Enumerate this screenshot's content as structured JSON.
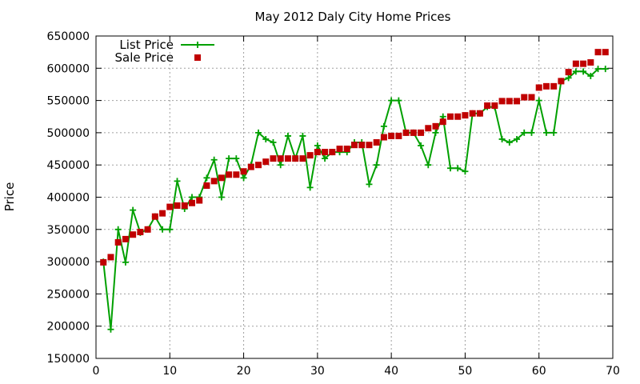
{
  "chart_data": {
    "type": "scatter",
    "title": "May 2012 Daly City Home Prices",
    "xlabel": "",
    "ylabel": "Price",
    "xlim": [
      0,
      70
    ],
    "ylim": [
      150000,
      650000
    ],
    "x_ticks": [
      0,
      10,
      20,
      30,
      40,
      50,
      60,
      70
    ],
    "y_ticks": [
      150000,
      200000,
      250000,
      300000,
      350000,
      400000,
      450000,
      500000,
      550000,
      600000,
      650000
    ],
    "grid": true,
    "legend_position": "top-left",
    "series": [
      {
        "name": "List Price",
        "style": "line-with-plus-markers",
        "color": "#00a000",
        "points": [
          [
            1,
            300000
          ],
          [
            2,
            195000
          ],
          [
            3,
            350000
          ],
          [
            4,
            299000
          ],
          [
            5,
            380000
          ],
          [
            6,
            345000
          ],
          [
            7,
            350000
          ],
          [
            8,
            370000
          ],
          [
            9,
            350000
          ],
          [
            10,
            350000
          ],
          [
            11,
            425000
          ],
          [
            12,
            382000
          ],
          [
            13,
            400000
          ],
          [
            14,
            400000
          ],
          [
            15,
            430000
          ],
          [
            16,
            458000
          ],
          [
            17,
            400000
          ],
          [
            18,
            460000
          ],
          [
            19,
            460000
          ],
          [
            20,
            430000
          ],
          [
            21,
            450000
          ],
          [
            22,
            500000
          ],
          [
            23,
            490000
          ],
          [
            24,
            485000
          ],
          [
            25,
            450000
          ],
          [
            26,
            495000
          ],
          [
            27,
            460000
          ],
          [
            28,
            495000
          ],
          [
            29,
            415000
          ],
          [
            30,
            480000
          ],
          [
            31,
            460000
          ],
          [
            32,
            470000
          ],
          [
            33,
            470000
          ],
          [
            34,
            470000
          ],
          [
            35,
            485000
          ],
          [
            36,
            485000
          ],
          [
            37,
            420000
          ],
          [
            38,
            450000
          ],
          [
            39,
            510000
          ],
          [
            40,
            550000
          ],
          [
            41,
            550000
          ],
          [
            42,
            500000
          ],
          [
            43,
            500000
          ],
          [
            44,
            480000
          ],
          [
            45,
            450000
          ],
          [
            46,
            500000
          ],
          [
            47,
            525000
          ],
          [
            48,
            445000
          ],
          [
            49,
            445000
          ],
          [
            50,
            440000
          ],
          [
            51,
            530000
          ],
          [
            52,
            530000
          ],
          [
            53,
            540000
          ],
          [
            54,
            540000
          ],
          [
            55,
            490000
          ],
          [
            56,
            485000
          ],
          [
            57,
            490000
          ],
          [
            58,
            500000
          ],
          [
            59,
            500000
          ],
          [
            60,
            550000
          ],
          [
            61,
            500000
          ],
          [
            62,
            500000
          ],
          [
            63,
            580000
          ],
          [
            64,
            585000
          ],
          [
            65,
            595000
          ],
          [
            66,
            595000
          ],
          [
            67,
            588000
          ],
          [
            68,
            599000
          ],
          [
            69,
            599000
          ]
        ]
      },
      {
        "name": "Sale Price",
        "style": "square-markers",
        "color": "#c00000",
        "points": [
          [
            1,
            299000
          ],
          [
            2,
            307000
          ],
          [
            3,
            330000
          ],
          [
            4,
            335000
          ],
          [
            5,
            342000
          ],
          [
            6,
            346000
          ],
          [
            7,
            350000
          ],
          [
            8,
            370000
          ],
          [
            9,
            375000
          ],
          [
            10,
            385000
          ],
          [
            11,
            387000
          ],
          [
            12,
            387000
          ],
          [
            13,
            391000
          ],
          [
            14,
            395000
          ],
          [
            15,
            418000
          ],
          [
            16,
            425000
          ],
          [
            17,
            430000
          ],
          [
            18,
            435000
          ],
          [
            19,
            435000
          ],
          [
            20,
            440000
          ],
          [
            21,
            447000
          ],
          [
            22,
            450000
          ],
          [
            23,
            455000
          ],
          [
            24,
            460000
          ],
          [
            25,
            460000
          ],
          [
            26,
            460000
          ],
          [
            27,
            460000
          ],
          [
            28,
            460000
          ],
          [
            29,
            465000
          ],
          [
            30,
            470000
          ],
          [
            31,
            470000
          ],
          [
            32,
            470000
          ],
          [
            33,
            475000
          ],
          [
            34,
            475000
          ],
          [
            35,
            481000
          ],
          [
            36,
            481000
          ],
          [
            37,
            481000
          ],
          [
            38,
            485000
          ],
          [
            39,
            493000
          ],
          [
            40,
            495000
          ],
          [
            41,
            495000
          ],
          [
            42,
            500000
          ],
          [
            43,
            500000
          ],
          [
            44,
            500000
          ],
          [
            45,
            507000
          ],
          [
            46,
            510000
          ],
          [
            47,
            517000
          ],
          [
            48,
            525000
          ],
          [
            49,
            525000
          ],
          [
            50,
            527000
          ],
          [
            51,
            530000
          ],
          [
            52,
            530000
          ],
          [
            53,
            542000
          ],
          [
            54,
            542000
          ],
          [
            55,
            549000
          ],
          [
            56,
            549000
          ],
          [
            57,
            549000
          ],
          [
            58,
            555000
          ],
          [
            59,
            555000
          ],
          [
            60,
            570000
          ],
          [
            61,
            572000
          ],
          [
            62,
            572000
          ],
          [
            63,
            580000
          ],
          [
            64,
            594000
          ],
          [
            65,
            607000
          ],
          [
            66,
            607000
          ],
          [
            67,
            609000
          ],
          [
            68,
            625000
          ],
          [
            69,
            625000
          ]
        ]
      }
    ]
  }
}
